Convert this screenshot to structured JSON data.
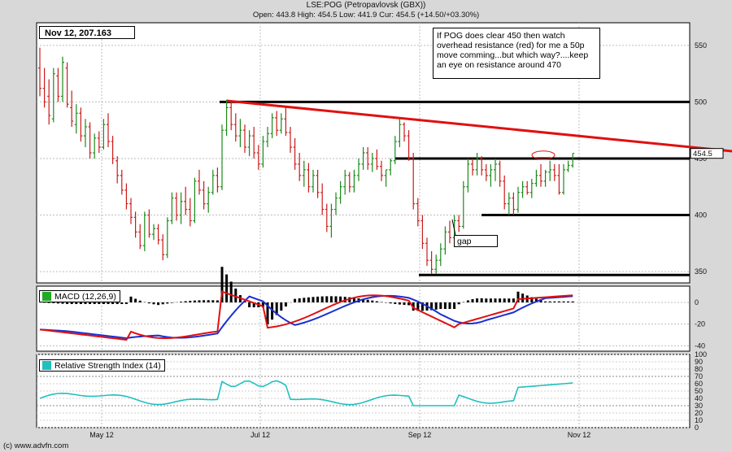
{
  "header": {
    "title": "LSE:POG (Petropavlovsk (GBX))",
    "ohlc": "Open: 443.8 High: 454.5 Low: 441.9 Cur: 454.5 (+14.50/+03.30%)"
  },
  "info_box": "Nov 12, 207.163",
  "annotation": "If POG does clear 450 then watch\noverhead resistance (red) for me a 50p\nmove comming...but which way?....keep\nan eye on resistance around 470",
  "gap_label": "gap",
  "current_price_label": "454.5",
  "footer": "(c) www.advfn.com",
  "colors": {
    "up": "#1a8a1a",
    "down": "#cc1a1a",
    "resistance": "#e01010",
    "support": "#000000",
    "macd": "#e01010",
    "signal": "#1a30d0",
    "rsi": "#20c0c0"
  },
  "chart_data": [
    {
      "type": "candlestick",
      "title": "LSE:POG (Petropavlovsk (GBX))",
      "y_ticks": [
        350,
        400,
        450,
        500,
        550
      ],
      "ylim": [
        340,
        570
      ],
      "x_ticks": [
        "May 12",
        "Jul 12",
        "Sep 12",
        "Nov 12"
      ],
      "current_price": 454.5,
      "ohlc_series": [
        [
          0,
          530,
          548,
          505,
          512
        ],
        [
          1,
          512,
          530,
          495,
          500
        ],
        [
          2,
          505,
          520,
          480,
          488
        ],
        [
          3,
          485,
          530,
          482,
          525
        ],
        [
          4,
          523,
          530,
          500,
          505
        ],
        [
          5,
          505,
          540,
          500,
          535
        ],
        [
          6,
          530,
          535,
          495,
          498
        ],
        [
          7,
          495,
          510,
          478,
          483
        ],
        [
          8,
          480,
          498,
          472,
          490
        ],
        [
          9,
          490,
          495,
          465,
          470
        ],
        [
          10,
          470,
          485,
          460,
          478
        ],
        [
          11,
          478,
          482,
          450,
          455
        ],
        [
          12,
          455,
          472,
          450,
          468
        ],
        [
          13,
          468,
          474,
          455,
          460
        ],
        [
          14,
          460,
          485,
          458,
          480
        ],
        [
          15,
          480,
          490,
          460,
          465
        ],
        [
          16,
          465,
          470,
          445,
          450
        ],
        [
          17,
          448,
          452,
          428,
          435
        ],
        [
          18,
          435,
          440,
          418,
          422
        ],
        [
          19,
          422,
          428,
          405,
          410
        ],
        [
          20,
          410,
          415,
          392,
          398
        ],
        [
          21,
          398,
          403,
          380,
          385
        ],
        [
          22,
          385,
          392,
          370,
          373
        ],
        [
          23,
          373,
          403,
          368,
          400
        ],
        [
          24,
          400,
          405,
          380,
          383
        ],
        [
          25,
          383,
          392,
          378,
          388
        ],
        [
          26,
          388,
          392,
          374,
          378
        ],
        [
          27,
          378,
          383,
          360,
          365
        ],
        [
          28,
          365,
          398,
          362,
          395
        ],
        [
          29,
          395,
          420,
          392,
          415
        ],
        [
          30,
          415,
          420,
          395,
          400
        ],
        [
          31,
          400,
          420,
          392,
          412
        ],
        [
          32,
          412,
          425,
          400,
          405
        ],
        [
          33,
          405,
          415,
          390,
          395
        ],
        [
          34,
          395,
          433,
          393,
          430
        ],
        [
          35,
          430,
          440,
          418,
          422
        ],
        [
          36,
          422,
          430,
          405,
          410
        ],
        [
          37,
          410,
          425,
          402,
          420
        ],
        [
          38,
          420,
          440,
          418,
          435
        ],
        [
          39,
          435,
          442,
          420,
          425
        ],
        [
          40,
          425,
          480,
          422,
          475
        ],
        [
          41,
          475,
          502,
          470,
          495
        ],
        [
          42,
          495,
          500,
          475,
          480
        ],
        [
          43,
          480,
          490,
          465,
          470
        ],
        [
          44,
          470,
          485,
          460,
          475
        ],
        [
          45,
          475,
          480,
          455,
          460
        ],
        [
          46,
          460,
          475,
          452,
          470
        ],
        [
          47,
          470,
          478,
          450,
          455
        ],
        [
          48,
          455,
          462,
          440,
          445
        ],
        [
          49,
          445,
          470,
          442,
          465
        ],
        [
          50,
          465,
          478,
          460,
          472
        ],
        [
          51,
          472,
          490,
          468,
          486
        ],
        [
          52,
          486,
          492,
          470,
          475
        ],
        [
          53,
          475,
          490,
          472,
          485
        ],
        [
          54,
          485,
          495,
          470,
          473
        ],
        [
          55,
          473,
          478,
          455,
          460
        ],
        [
          56,
          460,
          468,
          440,
          445
        ],
        [
          57,
          445,
          455,
          430,
          435
        ],
        [
          58,
          435,
          448,
          425,
          440
        ],
        [
          59,
          440,
          446,
          420,
          425
        ],
        [
          60,
          425,
          440,
          420,
          435
        ],
        [
          61,
          435,
          440,
          415,
          420
        ],
        [
          62,
          420,
          428,
          400,
          405
        ],
        [
          63,
          405,
          410,
          385,
          390
        ],
        [
          64,
          390,
          410,
          380,
          405
        ],
        [
          65,
          405,
          420,
          400,
          415
        ],
        [
          66,
          415,
          430,
          410,
          425
        ],
        [
          67,
          425,
          440,
          418,
          435
        ],
        [
          68,
          435,
          438,
          420,
          425
        ],
        [
          69,
          425,
          440,
          420,
          435
        ],
        [
          70,
          435,
          450,
          430,
          445
        ],
        [
          71,
          445,
          460,
          440,
          455
        ],
        [
          72,
          455,
          460,
          440,
          445
        ],
        [
          73,
          445,
          455,
          438,
          450
        ],
        [
          74,
          450,
          458,
          440,
          443
        ],
        [
          75,
          443,
          448,
          430,
          435
        ],
        [
          76,
          435,
          440,
          425,
          440
        ],
        [
          77,
          440,
          450,
          435,
          448
        ],
        [
          78,
          448,
          470,
          445,
          465
        ],
        [
          79,
          465,
          485,
          460,
          480
        ],
        [
          80,
          480,
          482,
          465,
          470
        ],
        [
          81,
          470,
          475,
          448,
          450
        ],
        [
          82,
          450,
          455,
          405,
          410
        ],
        [
          83,
          410,
          415,
          390,
          395
        ],
        [
          84,
          395,
          400,
          370,
          375
        ],
        [
          85,
          375,
          380,
          355,
          360
        ],
        [
          86,
          360,
          368,
          348,
          352
        ],
        [
          87,
          352,
          365,
          348,
          360
        ],
        [
          88,
          360,
          375,
          355,
          370
        ],
        [
          89,
          370,
          390,
          365,
          385
        ],
        [
          90,
          385,
          395,
          375,
          380
        ],
        [
          91,
          380,
          400,
          375,
          395
        ],
        [
          92,
          395,
          400,
          385,
          390
        ],
        [
          93,
          390,
          430,
          388,
          425
        ],
        [
          94,
          425,
          450,
          420,
          445
        ],
        [
          95,
          445,
          450,
          435,
          440
        ],
        [
          96,
          440,
          455,
          435,
          450
        ],
        [
          97,
          450,
          452,
          435,
          440
        ],
        [
          98,
          440,
          445,
          430,
          435
        ],
        [
          99,
          435,
          445,
          425,
          440
        ],
        [
          100,
          440,
          450,
          430,
          445
        ],
        [
          101,
          445,
          448,
          425,
          430
        ],
        [
          102,
          430,
          435,
          405,
          410
        ],
        [
          103,
          410,
          420,
          400,
          415
        ],
        [
          104,
          415,
          420,
          400,
          405
        ],
        [
          105,
          405,
          425,
          402,
          420
        ],
        [
          106,
          420,
          430,
          415,
          425
        ],
        [
          107,
          425,
          430,
          418,
          420
        ],
        [
          108,
          420,
          432,
          415,
          428
        ],
        [
          109,
          428,
          440,
          425,
          435
        ],
        [
          110,
          435,
          445,
          425,
          430
        ],
        [
          111,
          430,
          440,
          425,
          438
        ],
        [
          112,
          438,
          448,
          430,
          440
        ],
        [
          113,
          440,
          445,
          430,
          435
        ],
        [
          114,
          435,
          445,
          418,
          420
        ],
        [
          115,
          420,
          445,
          418,
          440
        ],
        [
          116,
          440,
          448,
          438,
          444
        ],
        [
          117,
          443.8,
          454.5,
          441.9,
          454.5
        ]
      ],
      "support_levels": [
        500,
        450,
        400,
        347
      ],
      "resistance_line": {
        "from": [
          41,
          501
        ],
        "to": [
          163,
          452
        ]
      }
    },
    {
      "type": "line",
      "title": "MACD (12,26,9)",
      "y_ticks": [
        0,
        -20,
        -40
      ],
      "ylim": [
        -45,
        15
      ]
    },
    {
      "type": "line",
      "title": "Relative Strength Index (14)",
      "y_ticks": [
        0,
        10,
        20,
        30,
        40,
        50,
        60,
        70,
        80,
        90,
        100
      ],
      "ylim": [
        0,
        100
      ]
    }
  ]
}
